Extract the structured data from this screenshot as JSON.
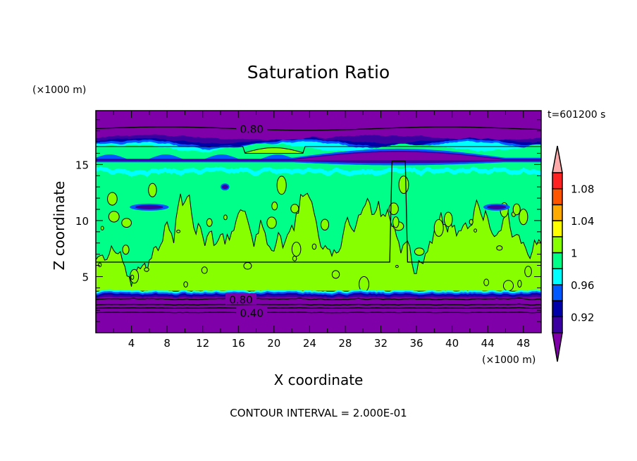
{
  "chart_data": {
    "type": "heatmap",
    "subtype": "filled-contour",
    "title": "Saturation Ratio",
    "xlabel": "X coordinate",
    "ylabel": "Z coordinate",
    "x_unit": "(×1000 m)",
    "y_unit": "(×1000 m)",
    "time_label": "t=601200 s",
    "footer": "CONTOUR INTERVAL = 2.000E-01",
    "xlim": [
      0,
      50
    ],
    "ylim": [
      0,
      19.8
    ],
    "xticks": [
      4,
      8,
      12,
      16,
      20,
      24,
      28,
      32,
      36,
      40,
      44,
      48
    ],
    "yticks": [
      5,
      10,
      15
    ],
    "contour_line_labels": [
      {
        "text": "0.80",
        "x": 17.5,
        "z": 18.2
      },
      {
        "text": "0.80",
        "x": 16.3,
        "z": 3.0
      },
      {
        "text": "0.40",
        "x": 17.5,
        "z": 1.8
      }
    ],
    "colorbar": {
      "levels": [
        0.9,
        0.92,
        0.94,
        0.96,
        0.98,
        1.0,
        1.02,
        1.04,
        1.06,
        1.08,
        1.1
      ],
      "labels": [
        {
          "text": "0.92",
          "level": 0.92
        },
        {
          "text": "0.96",
          "level": 0.96
        },
        {
          "text": "1",
          "level": 1.0
        },
        {
          "text": "1.04",
          "level": 1.04
        },
        {
          "text": "1.08",
          "level": 1.08
        }
      ],
      "colors": [
        "#3a00a0",
        "#0000a8",
        "#0058ff",
        "#00ffff",
        "#00ff88",
        "#88ff00",
        "#ffff00",
        "#ffaa00",
        "#ff5500",
        "#ff2222"
      ],
      "under_color": "#7f00a8",
      "over_color": "#ffaaaa"
    },
    "regions": {
      "boundary_layer_top_km": 3.4,
      "mid_layer_top_km": 14.2,
      "upper_band_top_km": 17.3
    }
  }
}
